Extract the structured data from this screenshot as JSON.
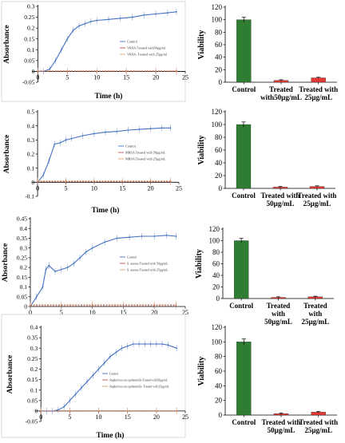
{
  "chart_data": [
    {
      "type": "line",
      "xlabel": "Time (h)",
      "ylabel": "Absorbance",
      "xlim": [
        -1,
        25
      ],
      "ylim": [
        -0.05,
        0.3
      ],
      "xticks": [
        0,
        5,
        10,
        15,
        20,
        25
      ],
      "yticks": [
        -0.05,
        0,
        0.05,
        0.1,
        0.15,
        0.2,
        0.25,
        0.3
      ],
      "legend_position": "center-right",
      "series": [
        {
          "name": "Control",
          "color": "#4472c4",
          "error_bars": true,
          "x": [
            0,
            1,
            2,
            3,
            4,
            5,
            6,
            7,
            8,
            9,
            10,
            12,
            14,
            16,
            18,
            20,
            22,
            23.5
          ],
          "y": [
            0,
            0,
            0.01,
            0.05,
            0.1,
            0.15,
            0.19,
            0.21,
            0.22,
            0.23,
            0.235,
            0.24,
            0.245,
            0.25,
            0.26,
            0.265,
            0.27,
            0.275
          ]
        },
        {
          "name": "VRSA-Treated with50µg/ml",
          "color": "#c0504d",
          "error_bars": true,
          "x": [
            0,
            5,
            10,
            15,
            20,
            23.5
          ],
          "y": [
            0,
            0,
            0,
            0,
            0,
            0
          ]
        },
        {
          "name": "VRSA- Treated with 25µg/ml",
          "color": "#d4a373",
          "error_bars": true,
          "x": [
            0,
            5,
            10,
            15,
            20,
            23.5
          ],
          "y": [
            0.003,
            0.003,
            0.003,
            0.003,
            0.003,
            0.003
          ]
        }
      ]
    },
    {
      "type": "bar",
      "ylabel": "Viability",
      "ylim": [
        0,
        120
      ],
      "yticks": [
        0,
        20,
        40,
        60,
        80,
        100,
        120
      ],
      "categories": [
        [
          "Control"
        ],
        [
          "Treated",
          "with50µg/mL"
        ],
        [
          "Treated with",
          "25µg/mL"
        ]
      ],
      "values": [
        100,
        3,
        7
      ],
      "errors": [
        4,
        1,
        1
      ],
      "colors": [
        "#2e7d32",
        "#e53935",
        "#e53935"
      ]
    },
    {
      "type": "line",
      "xlabel": "Time (h)",
      "ylabel": "Absorbance",
      "xlim": [
        -1,
        25
      ],
      "ylim": [
        -0.1,
        0.5
      ],
      "xticks": [
        0,
        5,
        10,
        15,
        20,
        25
      ],
      "yticks": [
        -0.1,
        0,
        0.1,
        0.2,
        0.3,
        0.4,
        0.5
      ],
      "legend_position": "center-right",
      "series": [
        {
          "name": "Control",
          "color": "#4472c4",
          "error_bars": true,
          "x": [
            0,
            1,
            2,
            3,
            4,
            5,
            6,
            8,
            10,
            12,
            14,
            16,
            18,
            20,
            22,
            23.5
          ],
          "y": [
            0,
            0.05,
            0.15,
            0.27,
            0.28,
            0.3,
            0.31,
            0.33,
            0.345,
            0.355,
            0.36,
            0.37,
            0.375,
            0.38,
            0.385,
            0.385
          ]
        },
        {
          "name": "MRSA Treated with 50µg/mL",
          "color": "#c0504d",
          "error_bars": true,
          "x": [
            0,
            5,
            10,
            15,
            20,
            23.5
          ],
          "y": [
            0.005,
            0.005,
            0.005,
            0.005,
            0.005,
            0.005
          ]
        },
        {
          "name": "MRSA Treated with 25µg/mL",
          "color": "#d4a373",
          "error_bars": true,
          "x": [
            0,
            5,
            10,
            15,
            20,
            23.5
          ],
          "y": [
            0.01,
            0.01,
            0.01,
            0.01,
            0.01,
            0.01
          ]
        }
      ]
    },
    {
      "type": "bar",
      "ylabel": "Viability",
      "ylim": [
        0,
        120
      ],
      "yticks": [
        0,
        20,
        40,
        60,
        80,
        100,
        120
      ],
      "categories": [
        [
          "Control"
        ],
        [
          "Treated with",
          "50µg/mL"
        ],
        [
          "Treated with",
          "25µg/mL"
        ]
      ],
      "values": [
        100,
        2,
        3
      ],
      "errors": [
        4,
        1,
        1
      ],
      "colors": [
        "#2e7d32",
        "#e53935",
        "#e53935"
      ]
    },
    {
      "type": "line",
      "xlabel": "",
      "ylabel": "Absorbance",
      "xlim": [
        0,
        25
      ],
      "ylim": [
        0,
        0.45
      ],
      "xticks": [
        0,
        5,
        10,
        15,
        20,
        25
      ],
      "yticks": [
        0,
        0.05,
        0.1,
        0.15,
        0.2,
        0.25,
        0.3,
        0.35,
        0.4,
        0.45
      ],
      "legend_position": "center-right",
      "series": [
        {
          "name": "Control",
          "color": "#4472c4",
          "error_bars": true,
          "x": [
            0,
            1,
            2,
            2.5,
            3,
            4,
            5,
            6,
            7,
            8,
            9,
            10,
            12,
            14,
            16,
            18,
            20,
            22,
            23.5
          ],
          "y": [
            0,
            0.05,
            0.1,
            0.19,
            0.21,
            0.18,
            0.19,
            0.2,
            0.22,
            0.25,
            0.28,
            0.3,
            0.33,
            0.35,
            0.355,
            0.36,
            0.36,
            0.365,
            0.36
          ]
        },
        {
          "name": "S. aureus Treated with  50µg/mL",
          "color": "#c0504d",
          "error_bars": true,
          "x": [
            0,
            5,
            10,
            15,
            20,
            23.5
          ],
          "y": [
            0.005,
            0.005,
            0.005,
            0.005,
            0.005,
            0.005
          ]
        },
        {
          "name": "S. aureus Treated with 25µg/mL",
          "color": "#d4a373",
          "error_bars": true,
          "x": [
            0,
            5,
            10,
            15,
            20,
            23.5
          ],
          "y": [
            0.01,
            0.01,
            0.01,
            0.01,
            0.01,
            0.01
          ]
        }
      ]
    },
    {
      "type": "bar",
      "ylabel": "Viability",
      "ylim": [
        0,
        120
      ],
      "yticks": [
        0,
        20,
        40,
        60,
        80,
        100,
        120
      ],
      "categories": [
        [
          "Control"
        ],
        [
          "Treated",
          "with",
          "50µg/mL"
        ],
        [
          "Treated",
          "with",
          "25µg/mL"
        ]
      ],
      "values": [
        100,
        2,
        3
      ],
      "errors": [
        4,
        1,
        1
      ],
      "colors": [
        "#2e7d32",
        "#e53935",
        "#e53935"
      ]
    },
    {
      "type": "line",
      "xlabel": "Time (h)",
      "ylabel": "Absorbance",
      "xlim": [
        -1,
        25
      ],
      "ylim": [
        -0.05,
        0.4
      ],
      "xticks": [
        0,
        5,
        10,
        15,
        20,
        25
      ],
      "yticks": [
        -0.05,
        0,
        0.05,
        0.1,
        0.15,
        0.2,
        0.25,
        0.3,
        0.35,
        0.4
      ],
      "legend_position": "center-right",
      "series": [
        {
          "name": "Control",
          "color": "#4472c4",
          "error_bars": true,
          "x": [
            0,
            1,
            2,
            3,
            4,
            5,
            6,
            7,
            8,
            9,
            10,
            11,
            12,
            13,
            14,
            15,
            16,
            17,
            18,
            19,
            20,
            21,
            22,
            23.5
          ],
          "y": [
            0,
            0,
            0,
            0.005,
            0.02,
            0.05,
            0.08,
            0.11,
            0.14,
            0.17,
            0.2,
            0.23,
            0.26,
            0.28,
            0.3,
            0.31,
            0.32,
            0.32,
            0.32,
            0.32,
            0.32,
            0.32,
            0.315,
            0.3
          ]
        },
        {
          "name": "Staphylococcus epidermidis-Treated with50µg/mL",
          "color": "#c0504d",
          "error_bars": true,
          "x": [
            0,
            5,
            10,
            15,
            20,
            23.5
          ],
          "y": [
            0,
            0,
            0,
            0,
            0,
            0
          ]
        },
        {
          "name": "Staphylococcus epidermidis- Treated with 25µg/mL",
          "color": "#d4a373",
          "error_bars": true,
          "x": [
            0,
            5,
            10,
            15,
            20,
            23.5
          ],
          "y": [
            0.002,
            0.002,
            0.002,
            0.002,
            0.002,
            0.002
          ]
        }
      ]
    },
    {
      "type": "bar",
      "ylabel": "Viability",
      "ylim": [
        0,
        120
      ],
      "yticks": [
        0,
        20,
        40,
        60,
        80,
        100,
        120
      ],
      "categories": [
        [
          "Control"
        ],
        [
          "Treated with",
          "50µg/mL"
        ],
        [
          "Treated with",
          "25µg/mL"
        ]
      ],
      "values": [
        100,
        2,
        4
      ],
      "errors": [
        4,
        1,
        1
      ],
      "colors": [
        "#2e7d32",
        "#e53935",
        "#e53935"
      ]
    }
  ]
}
